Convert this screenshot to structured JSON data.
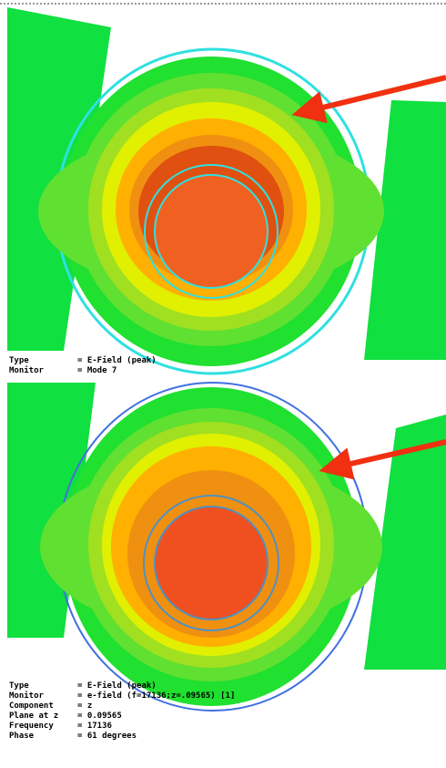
{
  "panels": [
    {
      "labels": [
        {
          "key": "Type",
          "value": "= E-Field (peak)"
        },
        {
          "key": "Monitor",
          "value": "= Mode 7"
        }
      ]
    },
    {
      "labels": [
        {
          "key": "Type",
          "value": "= E-Field (peak)"
        },
        {
          "key": "Monitor",
          "value": "= e-field (f=17136;z=.09565) [1]"
        },
        {
          "key": "Component",
          "value": "= z"
        },
        {
          "key": "Plane at z",
          "value": "= 0.09565"
        },
        {
          "key": "Frequency",
          "value": "= 17136"
        },
        {
          "key": "Phase",
          "value": "= 61 degrees"
        }
      ]
    }
  ]
}
